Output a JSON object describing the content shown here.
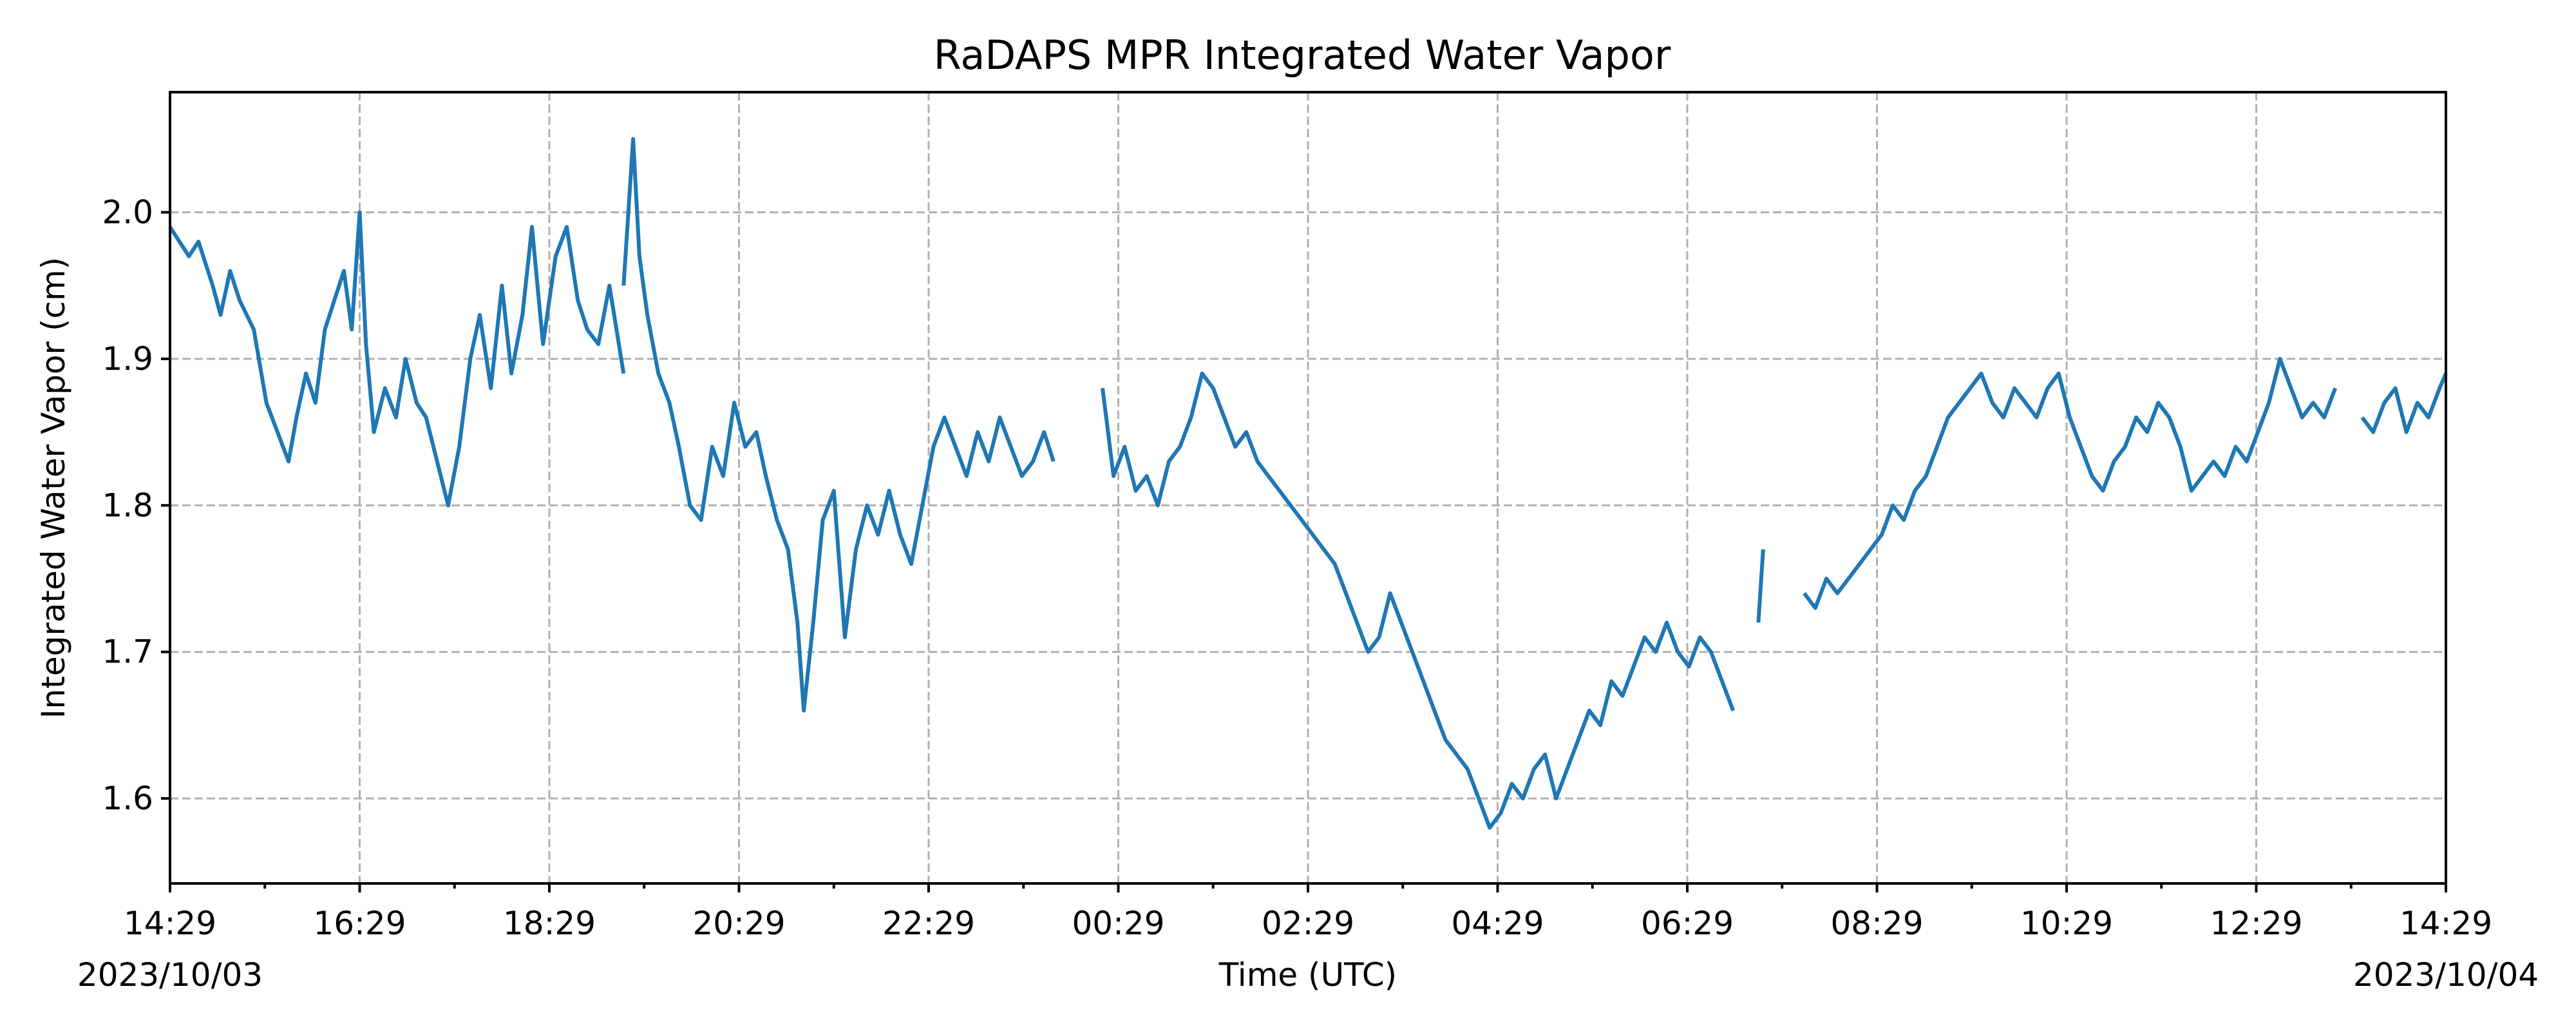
{
  "chart_data": {
    "type": "line",
    "title": "RaDAPS MPR Integrated Water Vapor",
    "xlabel": "Time (UTC)",
    "ylabel": "Integrated Water Vapor (cm)",
    "x_start_date": "2023/10/03",
    "x_end_date": "2023/10/04",
    "x_range": [
      "2023-10-03 14:29",
      "2023-10-04 14:29"
    ],
    "x_ticks": [
      "14:29",
      "16:29",
      "18:29",
      "20:29",
      "22:29",
      "00:29",
      "02:29",
      "04:29",
      "06:29",
      "08:29",
      "10:29",
      "12:29",
      "14:29"
    ],
    "ylim": [
      1.542,
      2.082
    ],
    "y_ticks": [
      "1.6",
      "1.7",
      "1.8",
      "1.9",
      "2.0"
    ],
    "grid": true,
    "series": [
      {
        "color": "#1f77b4",
        "segments": [
          {
            "x": [
              "2023-10-03 14:29",
              "2023-10-03 14:41",
              "2023-10-03 14:47",
              "2023-10-03 14:56",
              "2023-10-03 15:01",
              "2023-10-03 15:07",
              "2023-10-03 15:13",
              "2023-10-03 15:22",
              "2023-10-03 15:30",
              "2023-10-03 15:37",
              "2023-10-03 15:44",
              "2023-10-03 15:49",
              "2023-10-03 15:55",
              "2023-10-03 16:01",
              "2023-10-03 16:07",
              "2023-10-03 16:13",
              "2023-10-03 16:19",
              "2023-10-03 16:24",
              "2023-10-03 16:29",
              "2023-10-03 16:33",
              "2023-10-03 16:38",
              "2023-10-03 16:45",
              "2023-10-03 16:52",
              "2023-10-03 16:58",
              "2023-10-03 17:05",
              "2023-10-03 17:11",
              "2023-10-03 17:18",
              "2023-10-03 17:25",
              "2023-10-03 17:32",
              "2023-10-03 17:39",
              "2023-10-03 17:45",
              "2023-10-03 17:52",
              "2023-10-03 17:59",
              "2023-10-03 18:05",
              "2023-10-03 18:12",
              "2023-10-03 18:18",
              "2023-10-03 18:25",
              "2023-10-03 18:33",
              "2023-10-03 18:40",
              "2023-10-03 18:47",
              "2023-10-03 18:53",
              "2023-10-03 19:00",
              "2023-10-03 19:07",
              "2023-10-03 19:16"
            ],
            "y": [
              1.99,
              1.97,
              1.98,
              1.95,
              1.93,
              1.96,
              1.94,
              1.92,
              1.87,
              1.85,
              1.83,
              1.86,
              1.89,
              1.87,
              1.92,
              1.94,
              1.96,
              1.92,
              2.0,
              1.91,
              1.85,
              1.88,
              1.86,
              1.9,
              1.87,
              1.86,
              1.83,
              1.8,
              1.84,
              1.9,
              1.93,
              1.88,
              1.95,
              1.89,
              1.93,
              1.99,
              1.91,
              1.97,
              1.99,
              1.94,
              1.92,
              1.91,
              1.95,
              1.89
            ]
          },
          {
            "x": [
              "2023-10-03 19:16",
              "2023-10-03 19:22",
              "2023-10-03 19:26",
              "2023-10-03 19:31",
              "2023-10-03 19:38",
              "2023-10-03 19:45",
              "2023-10-03 19:51",
              "2023-10-03 19:58",
              "2023-10-03 20:05",
              "2023-10-03 20:12",
              "2023-10-03 20:19",
              "2023-10-03 20:26",
              "2023-10-03 20:33",
              "2023-10-03 20:40",
              "2023-10-03 20:46",
              "2023-10-03 20:53",
              "2023-10-03 21:00",
              "2023-10-03 21:06",
              "2023-10-03 21:10",
              "2023-10-03 21:16",
              "2023-10-03 21:22",
              "2023-10-03 21:29",
              "2023-10-03 21:36",
              "2023-10-03 21:43",
              "2023-10-03 21:50",
              "2023-10-03 21:57",
              "2023-10-03 22:04",
              "2023-10-03 22:11",
              "2023-10-03 22:18",
              "2023-10-03 22:25",
              "2023-10-03 22:32",
              "2023-10-03 22:39",
              "2023-10-03 22:46",
              "2023-10-03 22:53",
              "2023-10-03 23:00",
              "2023-10-03 23:07",
              "2023-10-03 23:14",
              "2023-10-03 23:21",
              "2023-10-03 23:28",
              "2023-10-03 23:35",
              "2023-10-03 23:42",
              "2023-10-03 23:48"
            ],
            "y": [
              1.95,
              2.05,
              1.97,
              1.93,
              1.89,
              1.87,
              1.84,
              1.8,
              1.79,
              1.84,
              1.82,
              1.87,
              1.84,
              1.85,
              1.82,
              1.79,
              1.77,
              1.72,
              1.66,
              1.72,
              1.79,
              1.81,
              1.71,
              1.77,
              1.8,
              1.78,
              1.81,
              1.78,
              1.76,
              1.8,
              1.84,
              1.86,
              1.84,
              1.82,
              1.85,
              1.83,
              1.86,
              1.84,
              1.82,
              1.83,
              1.85,
              1.83
            ]
          },
          {
            "x": [
              "2023-10-04 00:19",
              "2023-10-04 00:26",
              "2023-10-04 00:33",
              "2023-10-04 00:40",
              "2023-10-04 00:47",
              "2023-10-04 00:54",
              "2023-10-04 01:01",
              "2023-10-04 01:08",
              "2023-10-04 01:15",
              "2023-10-04 01:22",
              "2023-10-04 01:29",
              "2023-10-04 01:36",
              "2023-10-04 01:43",
              "2023-10-04 01:50",
              "2023-10-04 01:57",
              "2023-10-04 02:04",
              "2023-10-04 02:11",
              "2023-10-04 02:18",
              "2023-10-04 02:25",
              "2023-10-04 02:32",
              "2023-10-04 02:39",
              "2023-10-04 02:46",
              "2023-10-04 02:53",
              "2023-10-04 03:00",
              "2023-10-04 03:07",
              "2023-10-04 03:14",
              "2023-10-04 03:21",
              "2023-10-04 03:28",
              "2023-10-04 03:35",
              "2023-10-04 03:42",
              "2023-10-04 03:49",
              "2023-10-04 03:56",
              "2023-10-04 04:03",
              "2023-10-04 04:10",
              "2023-10-04 04:17",
              "2023-10-04 04:24",
              "2023-10-04 04:31",
              "2023-10-04 04:38",
              "2023-10-04 04:45",
              "2023-10-04 04:52",
              "2023-10-04 04:59",
              "2023-10-04 05:06",
              "2023-10-04 05:13",
              "2023-10-04 05:20",
              "2023-10-04 05:27",
              "2023-10-04 05:34",
              "2023-10-04 05:41",
              "2023-10-04 05:48",
              "2023-10-04 05:55",
              "2023-10-04 06:02",
              "2023-10-04 06:09",
              "2023-10-04 06:16",
              "2023-10-04 06:23",
              "2023-10-04 06:30",
              "2023-10-04 06:37",
              "2023-10-04 06:44",
              "2023-10-04 06:51",
              "2023-10-04 06:58"
            ],
            "y": [
              1.88,
              1.82,
              1.84,
              1.81,
              1.82,
              1.8,
              1.83,
              1.84,
              1.86,
              1.89,
              1.88,
              1.86,
              1.84,
              1.85,
              1.83,
              1.82,
              1.81,
              1.8,
              1.79,
              1.78,
              1.77,
              1.76,
              1.74,
              1.72,
              1.7,
              1.71,
              1.74,
              1.72,
              1.7,
              1.68,
              1.66,
              1.64,
              1.63,
              1.62,
              1.6,
              1.58,
              1.59,
              1.61,
              1.6,
              1.62,
              1.63,
              1.6,
              1.62,
              1.64,
              1.66,
              1.65,
              1.68,
              1.67,
              1.69,
              1.71,
              1.7,
              1.72,
              1.7,
              1.69,
              1.71,
              1.7,
              1.68,
              1.66
            ]
          },
          {
            "x": [
              "2023-10-04 07:14",
              "2023-10-04 07:17"
            ],
            "y": [
              1.72,
              1.77
            ]
          },
          {
            "x": [
              "2023-10-04 07:43",
              "2023-10-04 07:50",
              "2023-10-04 07:57",
              "2023-10-04 08:04",
              "2023-10-04 08:11",
              "2023-10-04 08:18",
              "2023-10-04 08:25",
              "2023-10-04 08:32",
              "2023-10-04 08:39",
              "2023-10-04 08:46",
              "2023-10-04 08:53",
              "2023-10-04 09:00",
              "2023-10-04 09:07",
              "2023-10-04 09:14",
              "2023-10-04 09:21",
              "2023-10-04 09:28",
              "2023-10-04 09:35",
              "2023-10-04 09:42",
              "2023-10-04 09:49",
              "2023-10-04 09:56",
              "2023-10-04 10:03",
              "2023-10-04 10:10",
              "2023-10-04 10:17",
              "2023-10-04 10:24",
              "2023-10-04 10:31",
              "2023-10-04 10:38",
              "2023-10-04 10:45",
              "2023-10-04 10:52",
              "2023-10-04 10:59",
              "2023-10-04 11:06",
              "2023-10-04 11:13",
              "2023-10-04 11:20",
              "2023-10-04 11:27",
              "2023-10-04 11:34",
              "2023-10-04 11:41",
              "2023-10-04 11:48",
              "2023-10-04 11:55",
              "2023-10-04 12:02",
              "2023-10-04 12:09",
              "2023-10-04 12:16",
              "2023-10-04 12:23",
              "2023-10-04 12:30",
              "2023-10-04 12:37",
              "2023-10-04 12:44",
              "2023-10-04 12:51",
              "2023-10-04 12:58",
              "2023-10-04 13:05",
              "2023-10-04 13:12",
              "2023-10-04 13:19"
            ],
            "y": [
              1.74,
              1.73,
              1.75,
              1.74,
              1.75,
              1.76,
              1.77,
              1.78,
              1.8,
              1.79,
              1.81,
              1.82,
              1.84,
              1.86,
              1.87,
              1.88,
              1.89,
              1.87,
              1.86,
              1.88,
              1.87,
              1.86,
              1.88,
              1.89,
              1.86,
              1.84,
              1.82,
              1.81,
              1.83,
              1.84,
              1.86,
              1.85,
              1.87,
              1.86,
              1.84,
              1.81,
              1.82,
              1.83,
              1.82,
              1.84,
              1.83,
              1.85,
              1.87,
              1.9,
              1.88,
              1.86,
              1.87,
              1.86,
              1.88
            ]
          },
          {
            "x": [
              "2023-10-04 13:36",
              "2023-10-04 13:43",
              "2023-10-04 13:50",
              "2023-10-04 13:57",
              "2023-10-04 14:04",
              "2023-10-04 14:11",
              "2023-10-04 14:18",
              "2023-10-04 14:25",
              "2023-10-04 14:29"
            ],
            "y": [
              1.86,
              1.85,
              1.87,
              1.88,
              1.85,
              1.87,
              1.86,
              1.88,
              1.89
            ]
          }
        ]
      }
    ]
  }
}
